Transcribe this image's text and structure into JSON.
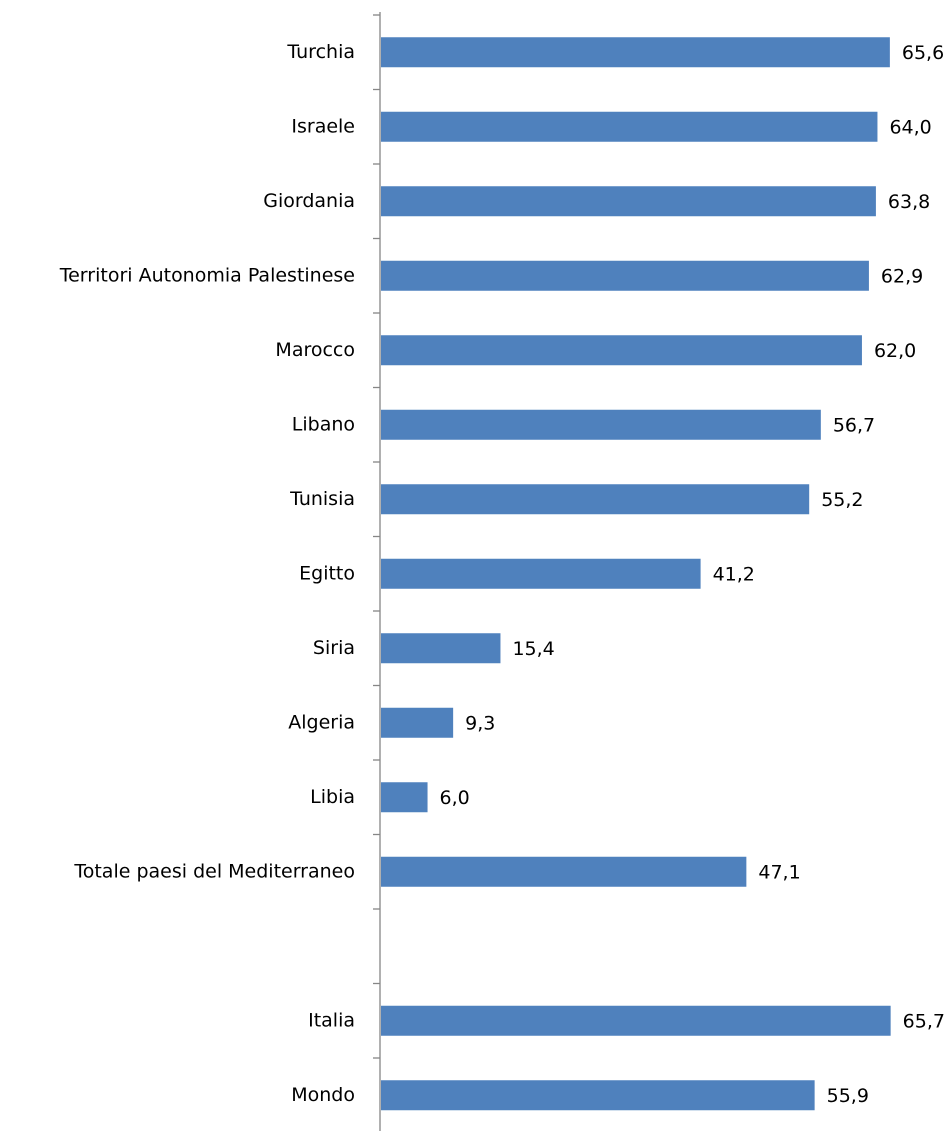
{
  "chart_data": {
    "type": "bar",
    "orientation": "horizontal",
    "categories": [
      "Turchia",
      "Israele",
      "Giordania",
      "Territori Autonomia Palestinese",
      "Marocco",
      "Libano",
      "Tunisia",
      "Egitto",
      "Siria",
      "Algeria",
      "Libia",
      "Totale paesi del Mediterraneo",
      null,
      "Italia",
      "Mondo"
    ],
    "values": [
      65.6,
      64.0,
      63.8,
      62.9,
      62.0,
      56.7,
      55.2,
      41.2,
      15.4,
      9.3,
      6.0,
      47.1,
      null,
      65.7,
      55.9
    ],
    "value_labels": [
      "65,6",
      "64,0",
      "63,8",
      "62,9",
      "62,0",
      "56,7",
      "55,2",
      "41,2",
      "15,4",
      "9,3",
      "6,0",
      "47,1",
      null,
      "65,7",
      "55,9"
    ],
    "color": "#4f81bd",
    "xlim": [
      0,
      70
    ]
  }
}
